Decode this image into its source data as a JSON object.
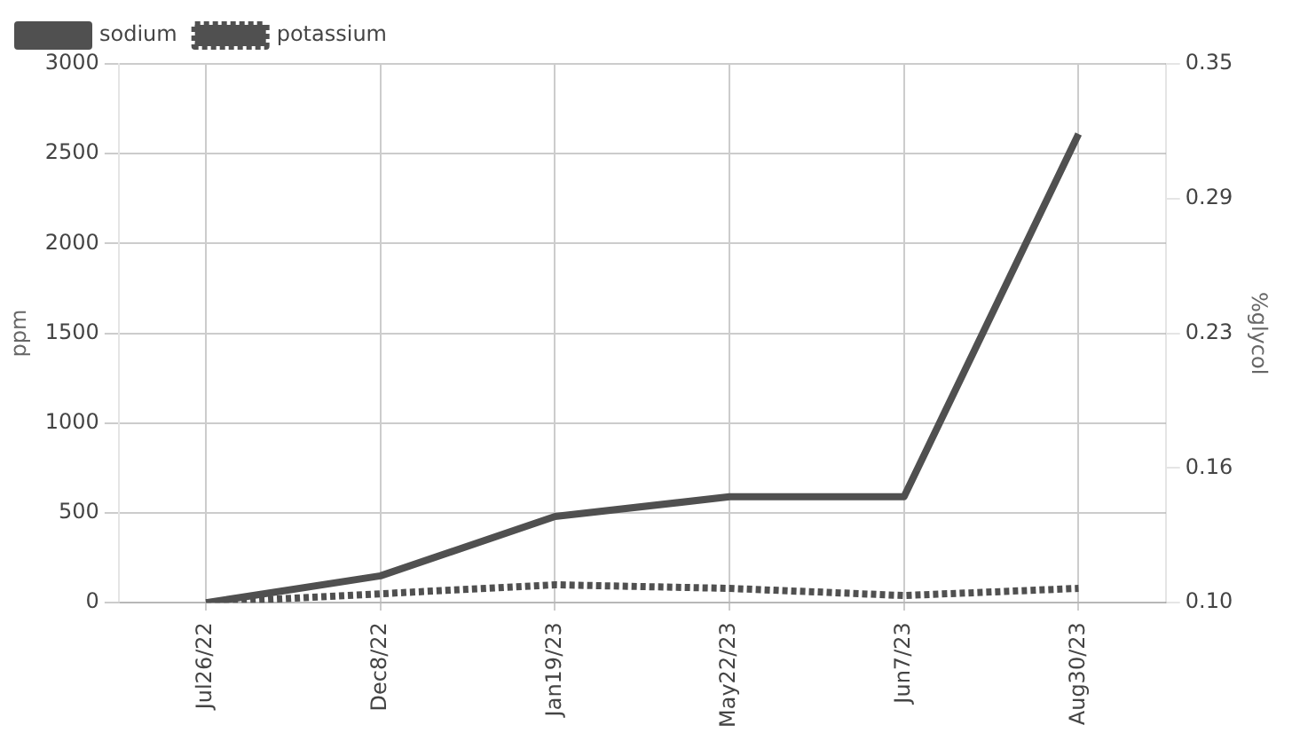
{
  "chart_data": {
    "type": "line",
    "categories": [
      "Jul26/22",
      "Dec8/22",
      "Jan19/23",
      "May22/23",
      "Jun7/23",
      "Aug30/23"
    ],
    "ylabel": "ppm",
    "y2label": "%glycol",
    "ylim": [
      0,
      3000
    ],
    "yticks": [
      0,
      500,
      1000,
      1500,
      2000,
      2500,
      3000
    ],
    "y2lim": [
      0.1,
      0.35
    ],
    "y2ticks": [
      {
        "value": 0.1,
        "label": "0.10"
      },
      {
        "value": 0.1625,
        "label": "0.16"
      },
      {
        "value": 0.225,
        "label": "0.23"
      },
      {
        "value": 0.2875,
        "label": "0.29"
      },
      {
        "value": 0.35,
        "label": "0.35"
      }
    ],
    "grid": true,
    "legend": "top left",
    "marker": "none",
    "series": [
      {
        "name": "sodium",
        "color": "#505050",
        "line_style": "solid",
        "values": [
          0,
          150,
          480,
          590,
          590,
          2610
        ]
      },
      {
        "name": "potassium",
        "color": "#505050",
        "line_style": "dotted",
        "values": [
          0,
          50,
          100,
          80,
          40,
          80
        ]
      }
    ]
  }
}
